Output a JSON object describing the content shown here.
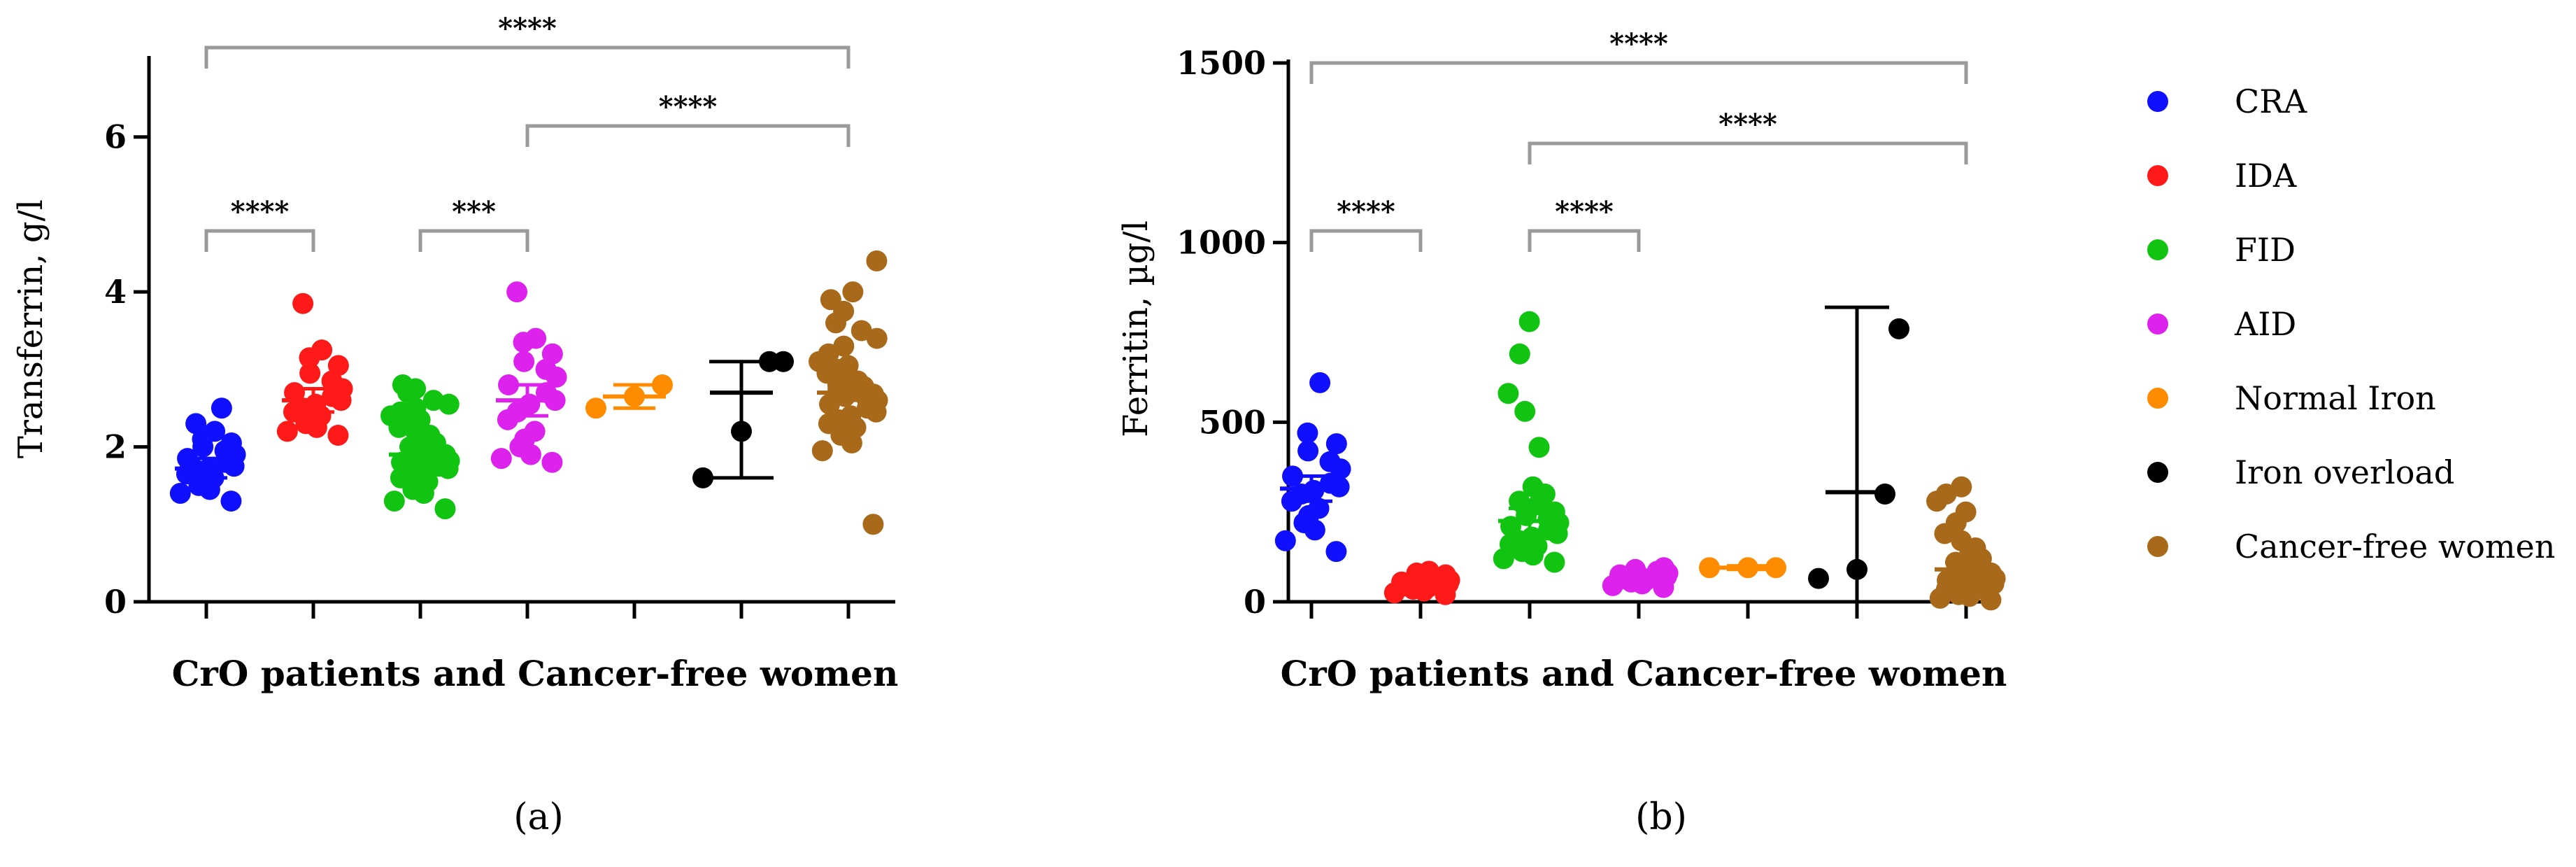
{
  "figure": {
    "legend_title": "",
    "legend": [
      {
        "name": "CRA",
        "color": "#1010ff"
      },
      {
        "name": "IDA",
        "color": "#ff1a1a"
      },
      {
        "name": "FID",
        "color": "#12c412"
      },
      {
        "name": "AID",
        "color": "#dd22ee"
      },
      {
        "name": "Normal Iron",
        "color": "#ff8c00"
      },
      {
        "name": "Iron overload",
        "color": "#000000"
      },
      {
        "name": "Cancer-free women",
        "color": "#a86a1a"
      }
    ]
  },
  "chart_data": [
    {
      "type": "scatter",
      "panel_label": "(a)",
      "title": "",
      "xlabel": "CrO patients and Cancer-free women",
      "ylabel": "Transferrin, g/l",
      "ylim": [
        0,
        7
      ],
      "yticks": [
        0,
        2,
        4,
        6
      ],
      "categories": [
        "CRA",
        "IDA",
        "FID",
        "AID",
        "Normal Iron",
        "Iron overload",
        "Cancer-free women"
      ],
      "series": [
        {
          "name": "CRA",
          "color": "#1010ff",
          "mean": 1.72,
          "error": [
            1.6,
            1.85
          ],
          "values": [
            1.3,
            1.4,
            1.45,
            1.5,
            1.55,
            1.6,
            1.65,
            1.7,
            1.72,
            1.75,
            1.8,
            1.85,
            1.9,
            1.95,
            2.0,
            2.05,
            2.1,
            2.2,
            2.3,
            2.5
          ]
        },
        {
          "name": "IDA",
          "color": "#ff1a1a",
          "mean": 2.6,
          "error": [
            2.45,
            2.75
          ],
          "values": [
            2.15,
            2.2,
            2.25,
            2.3,
            2.35,
            2.4,
            2.45,
            2.5,
            2.55,
            2.6,
            2.65,
            2.7,
            2.75,
            2.85,
            2.95,
            3.05,
            3.15,
            3.25,
            3.85
          ]
        },
        {
          "name": "FID",
          "color": "#12c412",
          "mean": 1.9,
          "error": [
            1.8,
            2.0
          ],
          "values": [
            1.2,
            1.3,
            1.4,
            1.45,
            1.5,
            1.55,
            1.6,
            1.65,
            1.7,
            1.72,
            1.75,
            1.8,
            1.82,
            1.85,
            1.88,
            1.9,
            1.92,
            1.95,
            2.0,
            2.05,
            2.1,
            2.15,
            2.2,
            2.25,
            2.3,
            2.35,
            2.4,
            2.45,
            2.5,
            2.55,
            2.6,
            2.7,
            2.75,
            2.8
          ]
        },
        {
          "name": "AID",
          "color": "#dd22ee",
          "mean": 2.6,
          "error": [
            2.4,
            2.8
          ],
          "values": [
            1.8,
            1.85,
            1.9,
            2.0,
            2.1,
            2.2,
            2.35,
            2.45,
            2.55,
            2.6,
            2.7,
            2.8,
            2.9,
            3.0,
            3.1,
            3.2,
            3.35,
            3.4,
            4.0
          ]
        },
        {
          "name": "Normal Iron",
          "color": "#ff8c00",
          "mean": 2.65,
          "error": [
            2.5,
            2.8
          ],
          "values": [
            2.5,
            2.65,
            2.8
          ]
        },
        {
          "name": "Iron overload",
          "color": "#000000",
          "mean": 2.7,
          "error": [
            1.6,
            3.1
          ],
          "values": [
            1.6,
            2.2,
            3.1,
            3.1
          ]
        },
        {
          "name": "Cancer-free women",
          "color": "#a86a1a",
          "mean": 2.7,
          "error": [
            2.6,
            2.8
          ],
          "values": [
            1.0,
            1.95,
            2.05,
            2.15,
            2.2,
            2.25,
            2.3,
            2.35,
            2.4,
            2.45,
            2.5,
            2.55,
            2.6,
            2.62,
            2.65,
            2.68,
            2.7,
            2.72,
            2.75,
            2.78,
            2.8,
            2.85,
            2.9,
            2.95,
            3.0,
            3.05,
            3.1,
            3.2,
            3.3,
            3.4,
            3.5,
            3.6,
            3.75,
            3.9,
            4.0,
            4.4
          ]
        }
      ],
      "significance": [
        {
          "from": "CRA",
          "to": "Cancer-free women",
          "label": "****",
          "level": 3
        },
        {
          "from": "AID",
          "to": "Cancer-free women",
          "label": "****",
          "level": 2
        },
        {
          "from": "CRA",
          "to": "IDA",
          "label": "****",
          "level": 1
        },
        {
          "from": "FID",
          "to": "AID",
          "label": "***",
          "level": 1
        }
      ]
    },
    {
      "type": "scatter",
      "panel_label": "(b)",
      "title": "",
      "xlabel": "CrO patients and Cancer-free women",
      "ylabel": "Ferritin, µg/l",
      "ylim": [
        0,
        1500
      ],
      "yticks": [
        0,
        500,
        1000,
        1500
      ],
      "categories": [
        "CRA",
        "IDA",
        "FID",
        "AID",
        "Normal Iron",
        "Iron overload",
        "Cancer-free women"
      ],
      "series": [
        {
          "name": "CRA",
          "color": "#1010ff",
          "mean": 315,
          "error": [
            280,
            350
          ],
          "values": [
            140,
            170,
            200,
            220,
            240,
            260,
            280,
            300,
            310,
            320,
            330,
            350,
            370,
            390,
            420,
            440,
            470,
            610
          ]
        },
        {
          "name": "IDA",
          "color": "#ff1a1a",
          "mean": 45,
          "error": [
            35,
            55
          ],
          "values": [
            20,
            25,
            30,
            35,
            38,
            40,
            42,
            45,
            48,
            50,
            52,
            55,
            60,
            65,
            70,
            75,
            80,
            85
          ]
        },
        {
          "name": "FID",
          "color": "#12c412",
          "mean": 225,
          "error": [
            190,
            260
          ],
          "values": [
            110,
            120,
            130,
            140,
            150,
            155,
            160,
            170,
            180,
            190,
            200,
            210,
            220,
            230,
            240,
            250,
            260,
            270,
            280,
            300,
            320,
            430,
            530,
            580,
            690,
            780
          ]
        },
        {
          "name": "AID",
          "color": "#dd22ee",
          "mean": 65,
          "error": [
            55,
            75
          ],
          "values": [
            40,
            45,
            50,
            55,
            58,
            60,
            62,
            65,
            68,
            70,
            72,
            75,
            80,
            85,
            90,
            95
          ]
        },
        {
          "name": "Normal Iron",
          "color": "#ff8c00",
          "mean": 95,
          "error": [
            90,
            100
          ],
          "values": [
            95,
            95,
            95
          ]
        },
        {
          "name": "Iron overload",
          "color": "#000000",
          "mean": 305,
          "error": [
            0,
            820
          ],
          "values": [
            65,
            90,
            300,
            760
          ]
        },
        {
          "name": "Cancer-free women",
          "color": "#a86a1a",
          "mean": 90,
          "error": [
            70,
            110
          ],
          "values": [
            5,
            10,
            15,
            20,
            25,
            30,
            35,
            40,
            45,
            50,
            55,
            60,
            65,
            70,
            75,
            80,
            90,
            100,
            110,
            120,
            130,
            150,
            170,
            190,
            220,
            250,
            280,
            300,
            320
          ]
        }
      ],
      "significance": [
        {
          "from": "CRA",
          "to": "Cancer-free women",
          "label": "****",
          "level": 3
        },
        {
          "from": "FID",
          "to": "Cancer-free women",
          "label": "****",
          "level": 2
        },
        {
          "from": "CRA",
          "to": "IDA",
          "label": "****",
          "level": 1
        },
        {
          "from": "FID",
          "to": "AID",
          "label": "****",
          "level": 1
        }
      ]
    }
  ]
}
